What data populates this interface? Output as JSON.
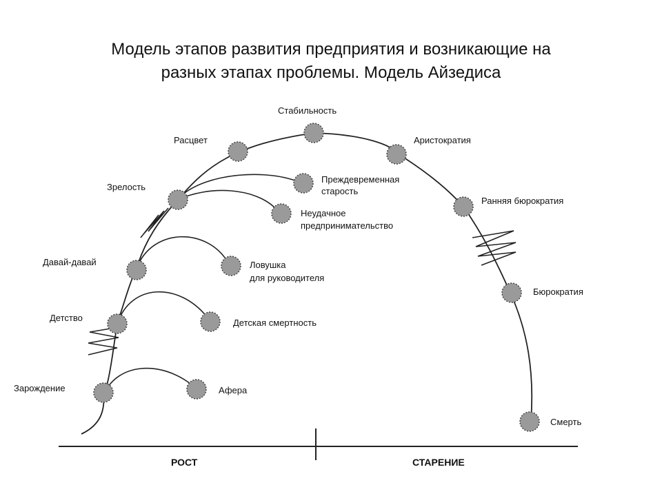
{
  "title": {
    "line1": "Модель  этапов развития предприятия и возникающие на",
    "line2": "разных этапах проблемы. Модель Айзедиса"
  },
  "stages": {
    "zarozhdenie": "Зарождение",
    "detstvo": "Детство",
    "davai": "Давай-давай",
    "zrelost": "Зрелость",
    "rascvet": "Расцвет",
    "stabilnost": "Стабильность",
    "aristokratiya": "Аристократия",
    "rannyaya_byurokratiya": "Ранняя бюрократия",
    "byurokratiya": "Бюрократия",
    "smert": "Смерть"
  },
  "traps": {
    "afera": "Афера",
    "detskaya_smertnost": "Детская смертность",
    "lovushka_1": "Ловушка",
    "lovushka_2": "для руководителя",
    "nepredprin_1": "Неудачное",
    "nepredprin_2": "предпринимательство",
    "prezhdevremennaya_1": "Преждевременная",
    "prezhdevremennaya_2": "старость"
  },
  "axis": {
    "growth": "РОСТ",
    "aging": "СТАРЕНИЕ"
  }
}
